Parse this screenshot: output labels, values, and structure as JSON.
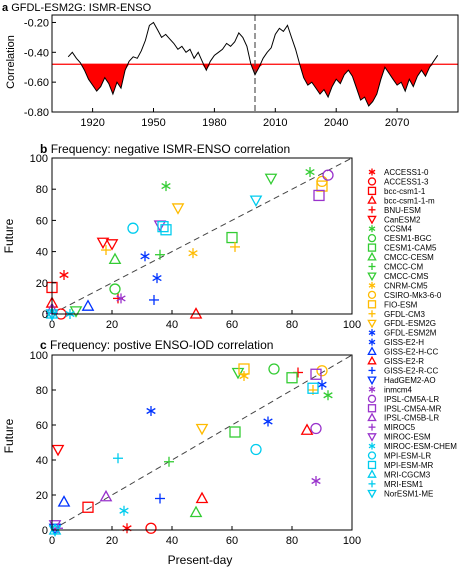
{
  "chart_data": [
    {
      "type": "area",
      "panel_label": "a",
      "title": "GFDL-ESM2G: ISMR-ENSO",
      "ylabel": "Correlation",
      "xlabel": "",
      "xlim": [
        1900,
        2100
      ],
      "ylim": [
        -0.8,
        -0.15
      ],
      "x_ticks": [
        1920,
        1950,
        1980,
        2010,
        2040,
        2070
      ],
      "x_tick_labels": [
        "1920",
        "1950",
        "1980",
        "2010",
        "2040",
        "2070"
      ],
      "y_ticks": [
        -0.2,
        -0.4,
        -0.6,
        -0.8
      ],
      "y_tick_labels": [
        "-0.20",
        "-0.40",
        "-0.60",
        "-0.80"
      ],
      "threshold": -0.48,
      "divider_x": 2000,
      "x": [
        1908,
        1910,
        1912,
        1914,
        1916,
        1918,
        1920,
        1922,
        1924,
        1926,
        1928,
        1930,
        1932,
        1934,
        1936,
        1938,
        1940,
        1942,
        1944,
        1946,
        1948,
        1950,
        1952,
        1954,
        1956,
        1958,
        1960,
        1962,
        1964,
        1966,
        1968,
        1970,
        1972,
        1974,
        1976,
        1978,
        1980,
        1982,
        1984,
        1986,
        1988,
        1990,
        1992,
        1994,
        1996,
        1998,
        2000,
        2002,
        2004,
        2006,
        2008,
        2010,
        2012,
        2014,
        2016,
        2018,
        2020,
        2022,
        2024,
        2026,
        2028,
        2030,
        2032,
        2034,
        2036,
        2038,
        2040,
        2042,
        2044,
        2046,
        2048,
        2050,
        2052,
        2054,
        2056,
        2058,
        2060,
        2062,
        2064,
        2066,
        2068,
        2070,
        2072,
        2074,
        2076,
        2078,
        2080,
        2082,
        2084,
        2086,
        2088,
        2090
      ],
      "y": [
        -0.43,
        -0.4,
        -0.44,
        -0.47,
        -0.52,
        -0.58,
        -0.62,
        -0.66,
        -0.63,
        -0.57,
        -0.61,
        -0.68,
        -0.6,
        -0.64,
        -0.52,
        -0.46,
        -0.43,
        -0.44,
        -0.39,
        -0.32,
        -0.22,
        -0.2,
        -0.25,
        -0.3,
        -0.28,
        -0.31,
        -0.34,
        -0.38,
        -0.36,
        -0.4,
        -0.38,
        -0.44,
        -0.4,
        -0.46,
        -0.52,
        -0.46,
        -0.42,
        -0.4,
        -0.38,
        -0.34,
        -0.36,
        -0.33,
        -0.27,
        -0.3,
        -0.36,
        -0.48,
        -0.55,
        -0.5,
        -0.44,
        -0.4,
        -0.37,
        -0.28,
        -0.24,
        -0.26,
        -0.22,
        -0.3,
        -0.38,
        -0.48,
        -0.57,
        -0.62,
        -0.6,
        -0.64,
        -0.68,
        -0.65,
        -0.7,
        -0.63,
        -0.58,
        -0.61,
        -0.55,
        -0.52,
        -0.56,
        -0.64,
        -0.72,
        -0.7,
        -0.76,
        -0.73,
        -0.68,
        -0.58,
        -0.5,
        -0.54,
        -0.58,
        -0.62,
        -0.6,
        -0.66,
        -0.58,
        -0.63,
        -0.56,
        -0.52,
        -0.56,
        -0.5,
        -0.46,
        -0.42
      ],
      "fill_color": "#ff0000",
      "line_color": "#000000",
      "threshold_color": "#ff0000"
    },
    {
      "type": "scatter",
      "panel_label": "b",
      "title": "Frequency: negative ISMR-ENSO correlation",
      "xlabel": "",
      "ylabel": "Future",
      "xlim": [
        0,
        100
      ],
      "ylim": [
        0,
        100
      ],
      "ticks": [
        0,
        20,
        40,
        60,
        80,
        100
      ],
      "tick_labels": [
        "0",
        "20",
        "40",
        "60",
        "80",
        "100"
      ],
      "reference_line": "1:1 diagonal, dashed",
      "points": [
        {
          "model": "ACCESS1-0",
          "x": 4,
          "y": 25
        },
        {
          "model": "ACCESS1-3",
          "x": 3,
          "y": 0
        },
        {
          "model": "bcc-csm1-1",
          "x": 0,
          "y": 17
        },
        {
          "model": "bcc-csm1-1-m",
          "x": 0,
          "y": 7
        },
        {
          "model": "BNU-ESM",
          "x": 22,
          "y": 10
        },
        {
          "model": "CanESM2",
          "x": 20,
          "y": 45
        },
        {
          "model": "CCSM4",
          "x": 38,
          "y": 82
        },
        {
          "model": "CESM1-BGC",
          "x": 21,
          "y": 16
        },
        {
          "model": "CESM1-CAM5",
          "x": 60,
          "y": 49
        },
        {
          "model": "CMCC-CESM",
          "x": 21,
          "y": 35
        },
        {
          "model": "CMCC-CM",
          "x": 36,
          "y": 38
        },
        {
          "model": "CMCC-CMS",
          "x": 8,
          "y": 2
        },
        {
          "model": "CNRM-CM5",
          "x": 47,
          "y": 39
        },
        {
          "model": "CSIRO-Mk3-6-0",
          "x": 90,
          "y": 85
        },
        {
          "model": "FIO-ESM",
          "x": 90,
          "y": 82
        },
        {
          "model": "GFDL-CM3",
          "x": 61,
          "y": 43
        },
        {
          "model": "GFDL-ESM2G",
          "x": 42,
          "y": 68
        },
        {
          "model": "GFDL-ESM2M",
          "x": 31,
          "y": 37
        },
        {
          "model": "GISS-E2-H",
          "x": 35,
          "y": 23
        },
        {
          "model": "GISS-E2-H-CC",
          "x": 12,
          "y": 5
        },
        {
          "model": "GISS-E2-R",
          "x": 48,
          "y": 0
        },
        {
          "model": "GISS-E2-R-CC",
          "x": 34,
          "y": 9
        },
        {
          "model": "HadGEM2-AO",
          "x": 0,
          "y": 0
        },
        {
          "model": "inmcm4",
          "x": 23,
          "y": 10
        },
        {
          "model": "IPSL-CM5A-LR",
          "x": 92,
          "y": 89
        },
        {
          "model": "IPSL-CM5A-MR",
          "x": 89,
          "y": 76
        },
        {
          "model": "IPSL-CM5B-LR",
          "x": 0,
          "y": 3
        },
        {
          "model": "MIROC5",
          "x": 0,
          "y": 1
        },
        {
          "model": "MIROC-ESM",
          "x": 36,
          "y": 57
        },
        {
          "model": "MIROC-ESM-CHEM",
          "x": 6,
          "y": 0
        },
        {
          "model": "MPI-ESM-LR",
          "x": 27,
          "y": 55
        },
        {
          "model": "MPI-ESM-MR",
          "x": 37,
          "y": 56
        },
        {
          "model": "MRI-CGCM3",
          "x": 0,
          "y": 0
        },
        {
          "model": "MRI-ESM1",
          "x": 0,
          "y": 1
        },
        {
          "model": "NorESM1-ME",
          "x": 0,
          "y": 0
        },
        {
          "model": "CCSM4",
          "x": 86,
          "y": 91
        },
        {
          "model": "CMCC-CMS",
          "x": 73,
          "y": 87
        },
        {
          "model": "NorESM1-ME",
          "x": 68,
          "y": 73
        },
        {
          "model": "MPI-ESM-MR",
          "x": 38,
          "y": 54
        },
        {
          "model": "CanESM2",
          "x": 17,
          "y": 46
        },
        {
          "model": "GFDL-CM3",
          "x": 18,
          "y": 41
        }
      ]
    },
    {
      "type": "scatter",
      "panel_label": "c",
      "title": "Frequency: postive ENSO-IOD correlation",
      "xlabel": "Present-day",
      "ylabel": "Future",
      "xlim": [
        0,
        100
      ],
      "ylim": [
        0,
        100
      ],
      "ticks": [
        0,
        20,
        40,
        60,
        80,
        100
      ],
      "tick_labels": [
        "0",
        "20",
        "40",
        "60",
        "80",
        "100"
      ],
      "reference_line": "1:1 diagonal, dashed",
      "points": [
        {
          "model": "ACCESS1-0",
          "x": 25,
          "y": 1
        },
        {
          "model": "ACCESS1-3",
          "x": 33,
          "y": 1
        },
        {
          "model": "bcc-csm1-1",
          "x": 12,
          "y": 13
        },
        {
          "model": "bcc-csm1-1-m",
          "x": 50,
          "y": 18
        },
        {
          "model": "BNU-ESM",
          "x": 82,
          "y": 90
        },
        {
          "model": "CanESM2",
          "x": 2,
          "y": 46
        },
        {
          "model": "CCSM4",
          "x": 92,
          "y": 77
        },
        {
          "model": "CESM1-BGC",
          "x": 74,
          "y": 92
        },
        {
          "model": "CESM1-CAM5",
          "x": 61,
          "y": 56
        },
        {
          "model": "CMCC-CESM",
          "x": 48,
          "y": 10
        },
        {
          "model": "CMCC-CM",
          "x": 39,
          "y": 39
        },
        {
          "model": "CMCC-CMS",
          "x": 62,
          "y": 90
        },
        {
          "model": "CNRM-CM5",
          "x": 64,
          "y": 88
        },
        {
          "model": "CSIRO-Mk3-6-0",
          "x": 90,
          "y": 91
        },
        {
          "model": "FIO-ESM",
          "x": 64,
          "y": 92
        },
        {
          "model": "GFDL-CM3",
          "x": 87,
          "y": 80
        },
        {
          "model": "GFDL-ESM2G",
          "x": 50,
          "y": 58
        },
        {
          "model": "GFDL-ESM2M",
          "x": 90,
          "y": 83
        },
        {
          "model": "GISS-E2-H",
          "x": 72,
          "y": 62
        },
        {
          "model": "GISS-E2-H-CC",
          "x": 4,
          "y": 16
        },
        {
          "model": "GISS-E2-R",
          "x": 85,
          "y": 57
        },
        {
          "model": "GISS-E2-R-CC",
          "x": 36,
          "y": 18
        },
        {
          "model": "HadGEM2-AO",
          "x": 1,
          "y": 1
        },
        {
          "model": "inmcm4",
          "x": 88,
          "y": 28
        },
        {
          "model": "IPSL-CM5A-LR",
          "x": 88,
          "y": 58
        },
        {
          "model": "IPSL-CM5A-MR",
          "x": 88,
          "y": 89
        },
        {
          "model": "IPSL-CM5B-LR",
          "x": 18,
          "y": 19
        },
        {
          "model": "MIROC5",
          "x": 2,
          "y": 1
        },
        {
          "model": "MIROC-ESM",
          "x": 1,
          "y": 3
        },
        {
          "model": "MIROC-ESM-CHEM",
          "x": 24,
          "y": 11
        },
        {
          "model": "MPI-ESM-LR",
          "x": 68,
          "y": 46
        },
        {
          "model": "MPI-ESM-MR",
          "x": 87,
          "y": 81
        },
        {
          "model": "MRI-CGCM3",
          "x": 1,
          "y": 0
        },
        {
          "model": "MRI-ESM1",
          "x": 22,
          "y": 41
        },
        {
          "model": "NorESM1-ME",
          "x": 1,
          "y": 0
        },
        {
          "model": "GISS-E2-H",
          "x": 33,
          "y": 68
        },
        {
          "model": "CESM1-CAM5",
          "x": 80,
          "y": 87
        }
      ]
    }
  ],
  "legend": {
    "entries": [
      {
        "label": "ACCESS1-0",
        "marker": "asterisk",
        "color": "#ff0000"
      },
      {
        "label": "ACCESS1-3",
        "marker": "circle",
        "color": "#ff0000"
      },
      {
        "label": "bcc-csm1-1",
        "marker": "square",
        "color": "#ff0000"
      },
      {
        "label": "bcc-csm1-1-m",
        "marker": "triangle",
        "color": "#ff0000"
      },
      {
        "label": "BNU-ESM",
        "marker": "plus",
        "color": "#ff0000"
      },
      {
        "label": "CanESM2",
        "marker": "triangle-down",
        "color": "#ff0000"
      },
      {
        "label": "CCSM4",
        "marker": "asterisk",
        "color": "#33cc33"
      },
      {
        "label": "CESM1-BGC",
        "marker": "circle",
        "color": "#33cc33"
      },
      {
        "label": "CESM1-CAM5",
        "marker": "square",
        "color": "#33cc33"
      },
      {
        "label": "CMCC-CESM",
        "marker": "triangle",
        "color": "#33cc33"
      },
      {
        "label": "CMCC-CM",
        "marker": "plus",
        "color": "#33cc33"
      },
      {
        "label": "CMCC-CMS",
        "marker": "triangle-down",
        "color": "#33cc33"
      },
      {
        "label": "CNRM-CM5",
        "marker": "asterisk",
        "color": "#ffbb00"
      },
      {
        "label": "CSIRO-Mk3-6-0",
        "marker": "circle",
        "color": "#ffbb00"
      },
      {
        "label": "FIO-ESM",
        "marker": "square",
        "color": "#ffbb00"
      },
      {
        "label": "GFDL-CM3",
        "marker": "plus",
        "color": "#ffbb00"
      },
      {
        "label": "GFDL-ESM2G",
        "marker": "triangle-down",
        "color": "#ffbb00"
      },
      {
        "label": "GFDL-ESM2M",
        "marker": "asterisk",
        "color": "#0033ff"
      },
      {
        "label": "GISS-E2-H",
        "marker": "asterisk",
        "color": "#0033ff"
      },
      {
        "label": "GISS-E2-H-CC",
        "marker": "triangle",
        "color": "#0033ff"
      },
      {
        "label": "GISS-E2-R",
        "marker": "triangle",
        "color": "#ff0000"
      },
      {
        "label": "GISS-E2-R-CC",
        "marker": "plus",
        "color": "#0033ff"
      },
      {
        "label": "HadGEM2-AO",
        "marker": "triangle-down",
        "color": "#0033ff"
      },
      {
        "label": "inmcm4",
        "marker": "asterisk",
        "color": "#9933cc"
      },
      {
        "label": "IPSL-CM5A-LR",
        "marker": "circle",
        "color": "#9933cc"
      },
      {
        "label": "IPSL-CM5A-MR",
        "marker": "square",
        "color": "#9933cc"
      },
      {
        "label": "IPSL-CM5B-LR",
        "marker": "triangle",
        "color": "#9933cc"
      },
      {
        "label": "MIROC5",
        "marker": "plus",
        "color": "#9933cc"
      },
      {
        "label": "MIROC-ESM",
        "marker": "triangle-down",
        "color": "#9933cc"
      },
      {
        "label": "MIROC-ESM-CHEM",
        "marker": "asterisk",
        "color": "#00ccee"
      },
      {
        "label": "MPI-ESM-LR",
        "marker": "circle",
        "color": "#00ccee"
      },
      {
        "label": "MPI-ESM-MR",
        "marker": "square",
        "color": "#00ccee"
      },
      {
        "label": "MRI-CGCM3",
        "marker": "triangle",
        "color": "#00ccee"
      },
      {
        "label": "MRI-ESM1",
        "marker": "plus",
        "color": "#00ccee"
      },
      {
        "label": "NorESM1-ME",
        "marker": "triangle-down",
        "color": "#00ccee"
      }
    ]
  }
}
